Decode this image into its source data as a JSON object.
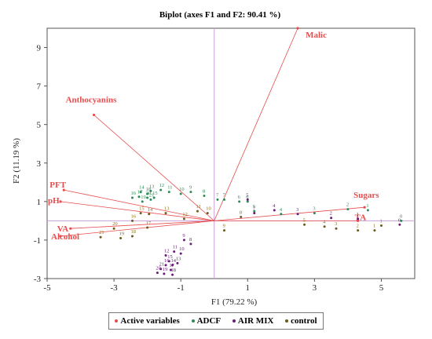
{
  "chart_data": {
    "type": "scatter",
    "title": "Biplot (axes F1 and F2: 90.41 %)",
    "xlabel": "F1 (79.22 %)",
    "ylabel": "F2 (11.19 %)",
    "xlim": [
      -5,
      6
    ],
    "ylim": [
      -3,
      10
    ],
    "x_ticks": [
      "-5",
      "-3",
      "-1",
      "1",
      "3",
      "5"
    ],
    "y_ticks": [
      "-3",
      "-1",
      "1",
      "3",
      "5",
      "7",
      "9"
    ],
    "x_tick_values": [
      -5,
      -3,
      -1,
      1,
      3,
      5
    ],
    "y_tick_values": [
      -3,
      -1,
      1,
      3,
      5,
      7,
      9
    ],
    "legend": {
      "placement": "bottom",
      "entries": [
        "Active variables",
        "ADCF",
        "AIR MIX",
        "control"
      ]
    },
    "colors": {
      "active_variables": "#e84c4c",
      "ADCF": "#2e8b57",
      "AIR MIX": "#6a1b7a",
      "control": "#6b5a1a",
      "control_labels": "#8a6d1a",
      "origin_lines": "#c9a0d8",
      "frame": "#555555"
    },
    "vectors": [
      {
        "name": "Malic",
        "x": 2.5,
        "y": 10.0
      },
      {
        "name": "Anthocyanins",
        "x": -3.6,
        "y": 5.5
      },
      {
        "name": "PFT",
        "x": -4.5,
        "y": 1.6
      },
      {
        "name": "pH",
        "x": -4.6,
        "y": 1.0
      },
      {
        "name": "VA",
        "x": -4.3,
        "y": -0.4
      },
      {
        "name": "Alcohol",
        "x": -4.6,
        "y": -0.8
      },
      {
        "name": "Sugars",
        "x": 4.5,
        "y": 0.7
      },
      {
        "name": "TA",
        "x": 4.3,
        "y": 0.0
      }
    ],
    "series": [
      {
        "name": "ADCF",
        "points": [
          {
            "label": "16",
            "x": -2.45,
            "y": 1.2
          },
          {
            "label": "14",
            "x": -2.2,
            "y": 1.5
          },
          {
            "label": "17",
            "x": -2.25,
            "y": 1.25
          },
          {
            "label": "19",
            "x": -2.15,
            "y": 1.0
          },
          {
            "label": "20",
            "x": -2.0,
            "y": 1.2
          },
          {
            "label": "21",
            "x": -1.9,
            "y": 1.1
          },
          {
            "label": "15",
            "x": -1.8,
            "y": 1.2
          },
          {
            "label": "18",
            "x": -2.0,
            "y": 1.4
          },
          {
            "label": "13",
            "x": -1.9,
            "y": 1.55
          },
          {
            "label": "12",
            "x": -1.6,
            "y": 1.6
          },
          {
            "label": "11",
            "x": -1.35,
            "y": 1.5
          },
          {
            "label": "10",
            "x": -1.0,
            "y": 1.4
          },
          {
            "label": "9",
            "x": -0.7,
            "y": 1.5
          },
          {
            "label": "8",
            "x": -0.3,
            "y": 1.3
          },
          {
            "label": "7",
            "x": 0.1,
            "y": 1.1
          },
          {
            "label": "7",
            "x": 0.3,
            "y": 1.1
          },
          {
            "label": "6",
            "x": 0.75,
            "y": 1.0
          },
          {
            "label": "6",
            "x": 1.0,
            "y": 1.0
          },
          {
            "label": "5",
            "x": 1.2,
            "y": 0.5
          },
          {
            "label": "4",
            "x": 2.0,
            "y": 0.35
          },
          {
            "label": "3",
            "x": 3.0,
            "y": 0.4
          },
          {
            "label": "2",
            "x": 4.0,
            "y": 0.6
          },
          {
            "label": "1",
            "x": 4.6,
            "y": 0.55
          },
          {
            "label": "0",
            "x": 5.6,
            "y": 0.0
          }
        ]
      },
      {
        "name": "AIR MIX",
        "points": [
          {
            "label": "5",
            "x": 1.0,
            "y": 1.1
          },
          {
            "label": "4",
            "x": 1.8,
            "y": 0.55
          },
          {
            "label": "7",
            "x": 1.2,
            "y": 0.4
          },
          {
            "label": "3",
            "x": 2.5,
            "y": 0.35
          },
          {
            "label": "2",
            "x": 3.5,
            "y": 0.15
          },
          {
            "label": "1",
            "x": 4.3,
            "y": 0.1
          },
          {
            "label": "0",
            "x": 5.55,
            "y": -0.2
          },
          {
            "label": "9",
            "x": -0.9,
            "y": -1.0
          },
          {
            "label": "8",
            "x": -0.7,
            "y": -1.2
          },
          {
            "label": "11",
            "x": -1.2,
            "y": -1.6
          },
          {
            "label": "12",
            "x": -1.45,
            "y": -1.8
          },
          {
            "label": "10",
            "x": -1.0,
            "y": -1.7
          },
          {
            "label": "13",
            "x": -1.1,
            "y": -2.2
          },
          {
            "label": "14",
            "x": -1.25,
            "y": -2.3
          },
          {
            "label": "15",
            "x": -1.35,
            "y": -2.1
          },
          {
            "label": "16",
            "x": -1.45,
            "y": -2.3
          },
          {
            "label": "17",
            "x": -1.3,
            "y": -2.55
          },
          {
            "label": "18",
            "x": -1.25,
            "y": -2.8
          },
          {
            "label": "19",
            "x": -1.5,
            "y": -2.75
          },
          {
            "label": "20",
            "x": -1.7,
            "y": -2.7
          },
          {
            "label": "21",
            "x": -1.6,
            "y": -2.5
          }
        ]
      },
      {
        "name": "control",
        "points": [
          {
            "label": "15",
            "x": -2.2,
            "y": 0.4
          },
          {
            "label": "14",
            "x": -1.95,
            "y": 0.35
          },
          {
            "label": "13",
            "x": -1.45,
            "y": 0.4
          },
          {
            "label": "16",
            "x": -2.45,
            "y": 0.0
          },
          {
            "label": "17",
            "x": -2.0,
            "y": -0.35
          },
          {
            "label": "18",
            "x": -2.45,
            "y": -0.8
          },
          {
            "label": "19",
            "x": -2.8,
            "y": -0.9
          },
          {
            "label": "20",
            "x": -3.0,
            "y": -0.4
          },
          {
            "label": "21",
            "x": -3.4,
            "y": -0.85
          },
          {
            "label": "12",
            "x": -0.9,
            "y": 0.1
          },
          {
            "label": "11",
            "x": -0.5,
            "y": 0.5
          },
          {
            "label": "10",
            "x": -0.2,
            "y": 0.4
          },
          {
            "label": "9",
            "x": 0.3,
            "y": -0.5
          },
          {
            "label": "8",
            "x": 0.8,
            "y": 0.2
          },
          {
            "label": "5",
            "x": 2.7,
            "y": -0.2
          },
          {
            "label": "4",
            "x": 3.3,
            "y": -0.3
          },
          {
            "label": "3",
            "x": 3.65,
            "y": -0.4
          },
          {
            "label": "2",
            "x": 4.3,
            "y": -0.5
          },
          {
            "label": "1",
            "x": 4.8,
            "y": -0.5
          },
          {
            "label": "1",
            "x": 5.0,
            "y": -0.25
          }
        ]
      }
    ]
  }
}
